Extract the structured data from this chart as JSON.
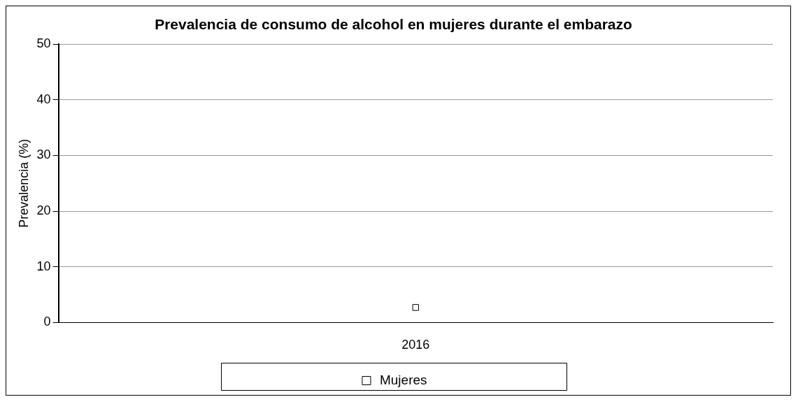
{
  "chart_data": {
    "type": "line",
    "title": "Prevalencia de consumo de alcohol en mujeres durante el embarazo",
    "ylabel": "Prevalencia (%)",
    "categories": [
      "2016"
    ],
    "series": [
      {
        "name": "Mujeres",
        "color": "#000000",
        "values": [
          2.7
        ]
      }
    ],
    "ylim": [
      0,
      50
    ],
    "yticks": [
      0,
      10,
      20,
      30,
      40,
      50
    ],
    "grid": "y",
    "legend": "bottom",
    "marker": "square"
  }
}
